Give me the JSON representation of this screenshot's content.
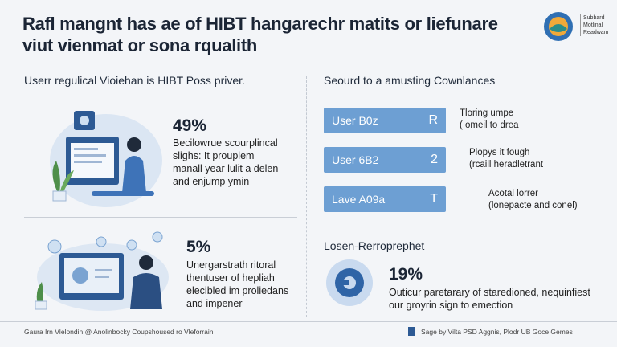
{
  "header": {
    "title_lines": [
      "Rafl mangnt has ae of HIBT hangarechr matits or liefunare",
      "viut vienmat or sona rqualith"
    ],
    "logo_lines": [
      "Subbard",
      "Motlinal",
      "Readwam"
    ]
  },
  "left": {
    "heading": "Userr regulical Vioiehan is HIBT Poss priver.",
    "stats": [
      {
        "value": "49%",
        "lines": [
          "Becilowrue scourplincal",
          "slighs: It prouplem",
          "manall year lulit a delen",
          "and enjump ymin"
        ]
      },
      {
        "value": "5%",
        "lines": [
          "Unergarstrath ritoral",
          "thentuser of hepliah",
          "elecibled im proliedans",
          "and impener"
        ]
      }
    ]
  },
  "right": {
    "heading": "Seourd to a amusting Cownlances",
    "rows": [
      {
        "label": "User B0z",
        "letter": "R",
        "lines": [
          "Tloring umpe",
          "( omeil to drea"
        ]
      },
      {
        "label": "User 6B2",
        "letter": "2",
        "lines": [
          "Plopys it fough",
          "(rcaill heradletrant"
        ]
      },
      {
        "label": "Lave A09a",
        "letter": "T",
        "lines": [
          "Acotal lorrer",
          "(lonepacte and conel)"
        ]
      }
    ],
    "section_heading": "Losen-Rerroprephet",
    "stat": {
      "value": "19%",
      "lines": [
        "Outicur paretarary of staredioned, nequinfiest",
        "our groyrin sign to emection"
      ]
    }
  },
  "footer": {
    "left": "Gaura Irn Vlelondin @ Anolinbocky Coupshoused ro Vleforrain",
    "right": "Sage by Vilta PSD Aggnis, Plodr UB Goce Gemes"
  }
}
